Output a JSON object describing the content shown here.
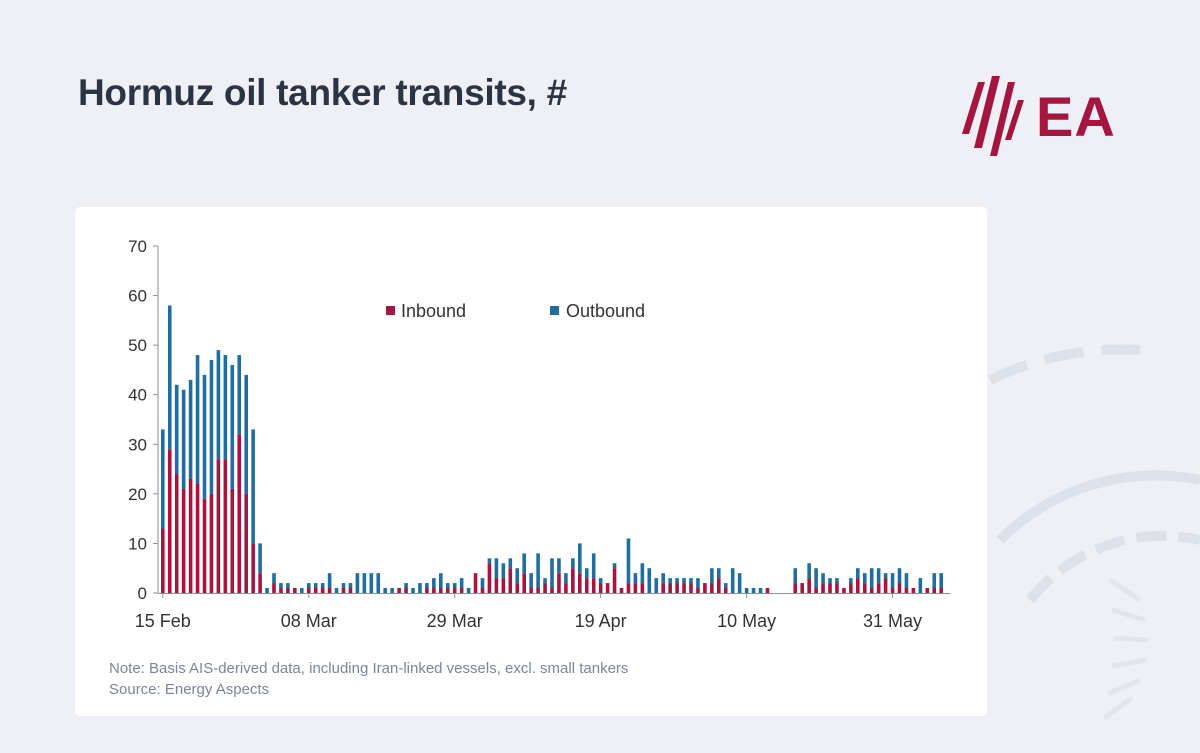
{
  "page": {
    "title": "Hormuz oil tanker transits, #",
    "logo_text": "EA",
    "note": "Note: Basis AIS-derived data, including Iran-linked vessels, excl. small tankers",
    "source": "Source: Energy Aspects"
  },
  "colors": {
    "background": "#eef0f5",
    "card": "#ffffff",
    "brand": "#a4153f",
    "inbound": "#a4153f",
    "outbound": "#1f6e9e",
    "title": "#2c3444"
  },
  "chart_data": {
    "type": "bar",
    "stacked": true,
    "title": "Hormuz oil tanker transits, #",
    "ylim": [
      0,
      70
    ],
    "yticks": [
      0,
      10,
      20,
      30,
      40,
      50,
      60,
      70
    ],
    "xtick_labels": [
      "15 Feb",
      "08 Mar",
      "29 Mar",
      "19 Apr",
      "10 May",
      "31 May"
    ],
    "xtick_day_index": [
      0,
      21,
      42,
      63,
      84,
      105
    ],
    "x_start": "15 Feb",
    "legend_position": "top-center",
    "grid": false,
    "series": [
      {
        "name": "Inbound",
        "values": [
          13,
          29,
          24,
          21,
          23,
          22,
          19,
          20,
          27,
          27,
          21,
          32,
          20,
          10,
          4,
          0,
          2,
          1,
          1,
          1,
          0,
          1,
          1,
          1,
          1,
          0,
          1,
          1,
          0,
          0,
          0,
          0,
          0,
          0,
          1,
          1,
          0,
          0,
          1,
          1,
          1,
          1,
          1,
          1,
          0,
          4,
          1,
          6,
          3,
          3,
          5,
          2,
          4,
          1,
          1,
          2,
          1,
          4,
          2,
          5,
          4,
          3,
          3,
          2,
          2,
          5,
          1,
          2,
          2,
          2,
          0,
          0,
          2,
          2,
          2,
          2,
          2,
          1,
          2,
          2,
          3,
          1,
          0,
          0,
          0,
          0,
          0,
          1,
          0,
          0,
          0,
          2,
          2,
          3,
          1,
          2,
          2,
          2,
          1,
          2,
          3,
          2,
          1,
          2,
          3,
          1,
          2,
          1,
          1,
          0,
          1,
          1,
          1
        ],
        "color": "#a4153f"
      },
      {
        "name": "Outbound",
        "values": [
          20,
          29,
          18,
          20,
          20,
          26,
          25,
          27,
          22,
          21,
          25,
          16,
          24,
          23,
          6,
          1,
          2,
          1,
          1,
          0,
          1,
          1,
          1,
          1,
          3,
          1,
          1,
          1,
          4,
          4,
          4,
          4,
          1,
          1,
          0,
          1,
          1,
          2,
          1,
          2,
          3,
          1,
          1,
          2,
          1,
          0,
          2,
          1,
          4,
          3,
          2,
          3,
          4,
          3,
          7,
          1,
          6,
          3,
          2,
          2,
          6,
          2,
          5,
          1,
          0,
          1,
          0,
          9,
          2,
          4,
          5,
          3,
          2,
          1,
          1,
          1,
          1,
          2,
          0,
          3,
          2,
          1,
          5,
          4,
          1,
          1,
          1,
          0,
          0,
          0,
          0,
          3,
          0,
          3,
          4,
          2,
          1,
          1,
          0,
          1,
          2,
          2,
          4,
          3,
          1,
          3,
          3,
          3,
          0,
          3,
          0,
          3,
          3
        ]
      }
    ]
  }
}
